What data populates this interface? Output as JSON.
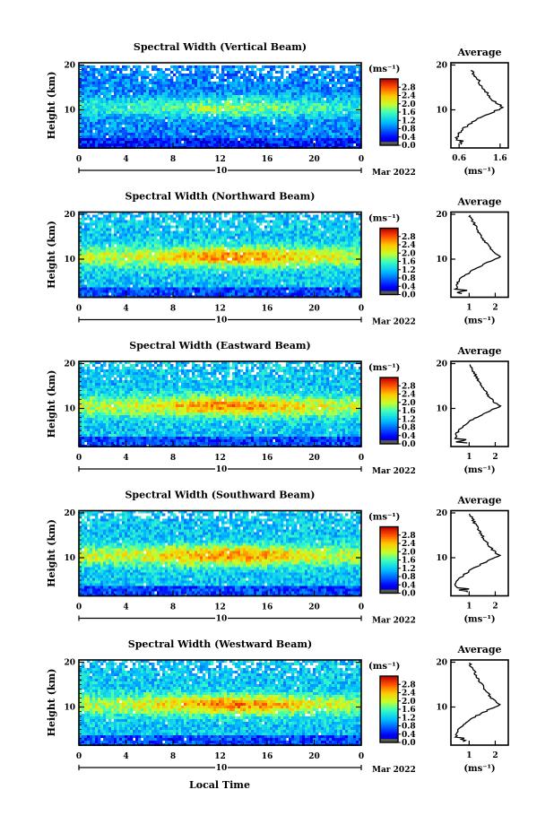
{
  "figure": {
    "xlabel": "Local Time",
    "ylabel": "Height (km)",
    "date_label": "Mar 2022",
    "day_marker": "10",
    "profile_title": "Average",
    "colorbar_unit": "(ms⁻¹)",
    "profile_unit": "(ms⁻¹)"
  },
  "chart_data": [
    {
      "type": "heatmap",
      "title": "Spectral Width (Vertical Beam)",
      "x_ticks": [
        "0",
        "4",
        "8",
        "12",
        "16",
        "20",
        "0"
      ],
      "xlim": [
        0,
        24
      ],
      "y_ticks": [
        "20",
        "10"
      ],
      "ylim": [
        1.5,
        20.5
      ],
      "colorbar_ticks": [
        "2.8",
        "2.4",
        "2.0",
        "1.6",
        "1.2",
        "0.8",
        "0.4",
        "0.0"
      ],
      "colorbar_range": [
        0,
        3.2
      ],
      "max_height_km": 19,
      "peak_height_km": 10.5,
      "peak_value": 1.8,
      "background_value": 0.9,
      "profile": {
        "x_ticks": [
          "0.6",
          "1.6"
        ],
        "x_tick_values": [
          0.6,
          1.6
        ],
        "xlim": [
          0.4,
          1.8
        ],
        "y_ticks": [
          "20",
          "10"
        ],
        "peak_height_km": 10.5,
        "peak_value": 1.7,
        "low_value": 0.55,
        "top_value": 0.9
      }
    },
    {
      "type": "heatmap",
      "title": "Spectral Width (Northward Beam)",
      "x_ticks": [
        "0",
        "4",
        "8",
        "12",
        "16",
        "20",
        "0"
      ],
      "xlim": [
        0,
        24
      ],
      "y_ticks": [
        "20",
        "10"
      ],
      "ylim": [
        1.5,
        20.5
      ],
      "colorbar_ticks": [
        "2.8",
        "2.4",
        "2.0",
        "1.6",
        "1.2",
        "0.8",
        "0.4",
        "0.0"
      ],
      "colorbar_range": [
        0,
        3.2
      ],
      "max_height_km": 20,
      "peak_height_km": 10.5,
      "peak_value": 2.5,
      "background_value": 1.2,
      "profile": {
        "x_ticks": [
          "1",
          "2"
        ],
        "x_tick_values": [
          1,
          2
        ],
        "xlim": [
          0.3,
          2.5
        ],
        "y_ticks": [
          "20",
          "10"
        ],
        "peak_height_km": 10.5,
        "peak_value": 2.2,
        "low_value": 0.5,
        "top_value": 1.0
      }
    },
    {
      "type": "heatmap",
      "title": "Spectral Width (Eastward Beam)",
      "x_ticks": [
        "0",
        "4",
        "8",
        "12",
        "16",
        "20",
        "0"
      ],
      "xlim": [
        0,
        24
      ],
      "y_ticks": [
        "20",
        "10"
      ],
      "ylim": [
        1.5,
        20.5
      ],
      "colorbar_ticks": [
        "2.8",
        "2.4",
        "2.0",
        "1.6",
        "1.2",
        "0.8",
        "0.4",
        "0.0"
      ],
      "colorbar_range": [
        0,
        3.2
      ],
      "max_height_km": 20,
      "peak_height_km": 10.5,
      "peak_value": 2.5,
      "background_value": 1.2,
      "profile": {
        "x_ticks": [
          "1",
          "2"
        ],
        "x_tick_values": [
          1,
          2
        ],
        "xlim": [
          0.3,
          2.5
        ],
        "y_ticks": [
          "20",
          "10"
        ],
        "peak_height_km": 10.5,
        "peak_value": 2.2,
        "low_value": 0.5,
        "top_value": 1.0
      }
    },
    {
      "type": "heatmap",
      "title": "Spectral Width (Southward Beam)",
      "x_ticks": [
        "0",
        "4",
        "8",
        "12",
        "16",
        "20",
        "0"
      ],
      "xlim": [
        0,
        24
      ],
      "y_ticks": [
        "20",
        "10"
      ],
      "ylim": [
        1.5,
        20.5
      ],
      "colorbar_ticks": [
        "2.8",
        "2.4",
        "2.0",
        "1.6",
        "1.2",
        "0.8",
        "0.4",
        "0.0"
      ],
      "colorbar_range": [
        0,
        3.2
      ],
      "max_height_km": 20,
      "peak_height_km": 10.5,
      "peak_value": 2.5,
      "background_value": 1.2,
      "profile": {
        "x_ticks": [
          "1",
          "2"
        ],
        "x_tick_values": [
          1,
          2
        ],
        "xlim": [
          0.3,
          2.5
        ],
        "y_ticks": [
          "20",
          "10"
        ],
        "peak_height_km": 10.5,
        "peak_value": 2.2,
        "low_value": 0.5,
        "top_value": 1.0
      }
    },
    {
      "type": "heatmap",
      "title": "Spectral Width (Westward Beam)",
      "x_ticks": [
        "0",
        "4",
        "8",
        "12",
        "16",
        "20",
        "0"
      ],
      "xlim": [
        0,
        24
      ],
      "y_ticks": [
        "20",
        "10"
      ],
      "ylim": [
        1.5,
        20.5
      ],
      "colorbar_ticks": [
        "2.8",
        "2.4",
        "2.0",
        "1.6",
        "1.2",
        "0.8",
        "0.4",
        "0.0"
      ],
      "colorbar_range": [
        0,
        3.2
      ],
      "max_height_km": 20,
      "peak_height_km": 10.5,
      "peak_value": 2.5,
      "background_value": 1.2,
      "profile": {
        "x_ticks": [
          "1",
          "2"
        ],
        "x_tick_values": [
          1,
          2
        ],
        "xlim": [
          0.3,
          2.5
        ],
        "y_ticks": [
          "20",
          "10"
        ],
        "peak_height_km": 10.5,
        "peak_value": 2.2,
        "low_value": 0.5,
        "top_value": 1.0
      }
    }
  ]
}
